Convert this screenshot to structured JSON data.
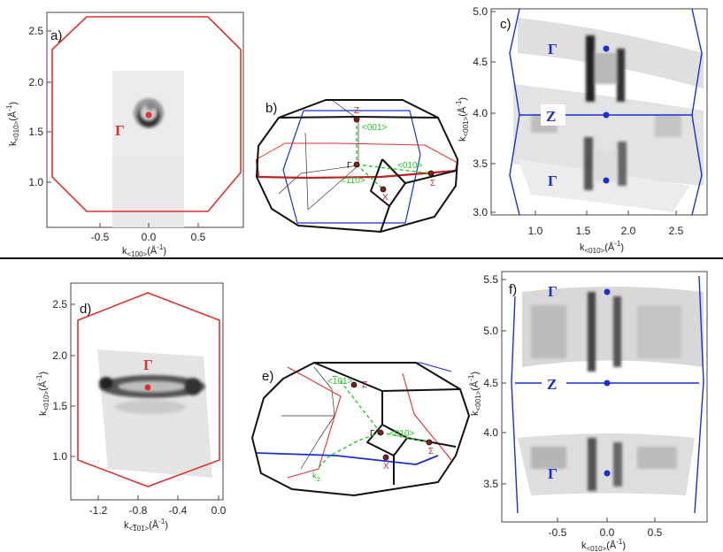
{
  "panels": {
    "a": {
      "label": "a)",
      "gamma": "Γ",
      "xlabel_main": "k",
      "xlabel_sub": "<100>",
      "xlabel_unit": "(Å",
      "xlabel_exp": "-1",
      "xlabel_close": ")",
      "ylabel_main": "k",
      "ylabel_sub": "<010>",
      "ylabel_unit": "(Å",
      "ylabel_exp": "-1",
      "ylabel_close": ")",
      "xticks": [
        "-0.5",
        "0.0",
        "0.5"
      ],
      "yticks": [
        "2.5",
        "2.0",
        "1.5",
        "1.0"
      ]
    },
    "b": {
      "label": "b)",
      "Z": "Z",
      "G": "Γ",
      "X": "X",
      "S": "Σ",
      "dir001": "<001>",
      "dir010": "<010>",
      "dir110": "<110>"
    },
    "c": {
      "label": "c)",
      "gamma_top": "Γ",
      "z": "Z",
      "gamma_bottom": "Γ",
      "xlabel_main": "k",
      "xlabel_sub": "<010>",
      "xlabel_unit": "(Å",
      "xlabel_exp": "-1",
      "xlabel_close": ")",
      "ylabel_main": "k",
      "ylabel_sub": "<001>",
      "ylabel_unit": "(Å",
      "ylabel_exp": "-1",
      "ylabel_close": ")",
      "xticks": [
        "1.0",
        "1.5",
        "2.0",
        "2.5"
      ],
      "yticks": [
        "5.0",
        "4.5",
        "4.0",
        "3.5",
        "3.0"
      ]
    },
    "d": {
      "label": "d)",
      "gamma": "Γ",
      "xlabel_main": "k",
      "xlabel_sub": "<",
      "xlabel_bar": "1",
      "xlabel_sub2": "01>",
      "xlabel_unit": "(Å",
      "xlabel_exp": "-1",
      "xlabel_close": ")",
      "ylabel_main": "k",
      "ylabel_sub": "<010>",
      "ylabel_unit": "(Å",
      "ylabel_exp": "-1",
      "ylabel_close": ")",
      "xticks": [
        "-1.2",
        "-0.8",
        "-0.4",
        "0.0"
      ],
      "yticks": [
        "2.5",
        "2.0",
        "1.5",
        "1.0"
      ]
    },
    "e": {
      "label": "e)",
      "Z": "Z",
      "G": "Γ",
      "X": "X",
      "S": "Σ",
      "kz": "k",
      "kz_sub": "z",
      "dir_a": "<",
      "dir_bar": "1",
      "dir_b": "01>",
      "dir010": "<010>"
    },
    "f": {
      "label": "f)",
      "gamma_top": "Γ",
      "z": "Z",
      "gamma_bottom": "Γ",
      "xlabel_main": "k",
      "xlabel_sub": "<010>",
      "xlabel_unit": "(Å",
      "xlabel_exp": "-1",
      "xlabel_close": ")",
      "ylabel_main": "k",
      "ylabel_sub": "<001>",
      "ylabel_unit": "(Å",
      "ylabel_exp": "-1",
      "ylabel_close": ")",
      "xticks": [
        "-0.5",
        "0.0",
        "0.5"
      ],
      "yticks": [
        "5.5",
        "5.0",
        "4.5",
        "4.0",
        "3.5"
      ]
    }
  },
  "colors": {
    "red": "#e03030",
    "blue": "#1a2fd0",
    "green": "#22cc22",
    "black": "#111111"
  }
}
